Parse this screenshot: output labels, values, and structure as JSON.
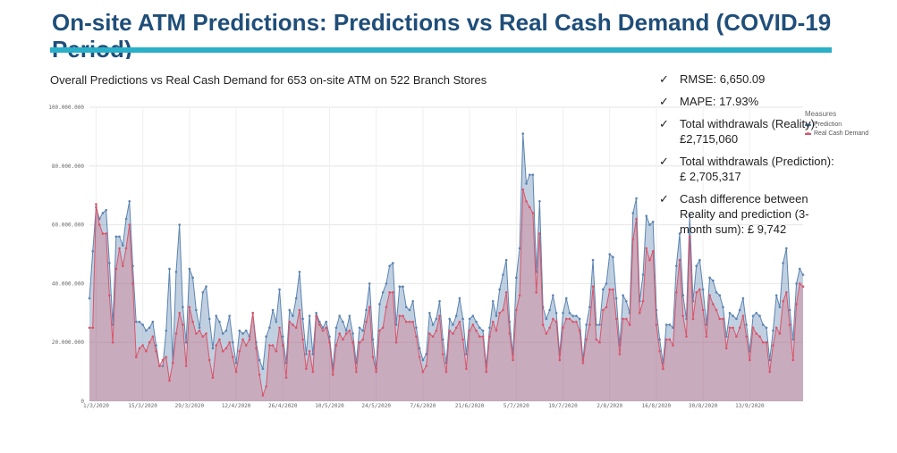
{
  "slide": {
    "title": "On-site ATM Predictions: Predictions vs Real Cash Demand (COVID-19 Period)",
    "subtitle": "Overall Predictions vs Real Cash Demand for 653 on-site ATM on 522 Branch Stores"
  },
  "stats": [
    {
      "check": "✓",
      "text": "RMSE: 6,650.09"
    },
    {
      "check": "✓",
      "text": "MAPE: 17.93%"
    },
    {
      "check": "✓",
      "text": "Total withdrawals (Reality): £2,715,060"
    },
    {
      "check": "✓",
      "text": "Total withdrawals (Prediction): £ 2,705,317"
    },
    {
      "check": "✓",
      "text": "Cash difference between Reality and prediction (3-month sum): £ 9,742"
    }
  ],
  "legend": {
    "title": "Measures",
    "items": [
      {
        "label": "Prediction",
        "color": "#5b84b1"
      },
      {
        "label": "Real Cash Demand",
        "color": "#d9556a"
      }
    ]
  },
  "chart_data": {
    "type": "area",
    "title": "",
    "xlabel": "",
    "ylabel": "",
    "ylim": [
      0,
      100000000
    ],
    "y_ticks": [
      {
        "value": 0,
        "label": "0"
      },
      {
        "value": 20000000,
        "label": "20.000.000"
      },
      {
        "value": 40000000,
        "label": "40.000.000"
      },
      {
        "value": 60000000,
        "label": "60.000.000"
      },
      {
        "value": 80000000,
        "label": "80.000.000"
      },
      {
        "value": 100000000,
        "label": "100.000.000"
      }
    ],
    "x_ticks": [
      {
        "index": 2,
        "label": "1/3/2020"
      },
      {
        "index": 16,
        "label": "15/3/2020"
      },
      {
        "index": 30,
        "label": "29/3/2020"
      },
      {
        "index": 44,
        "label": "12/4/2020"
      },
      {
        "index": 58,
        "label": "26/4/2020"
      },
      {
        "index": 72,
        "label": "10/5/2020"
      },
      {
        "index": 86,
        "label": "24/5/2020"
      },
      {
        "index": 100,
        "label": "7/6/2020"
      },
      {
        "index": 114,
        "label": "21/6/2020"
      },
      {
        "index": 128,
        "label": "5/7/2020"
      },
      {
        "index": 142,
        "label": "19/7/2020"
      },
      {
        "index": 156,
        "label": "2/8/2020"
      },
      {
        "index": 170,
        "label": "16/8/2020"
      },
      {
        "index": 184,
        "label": "30/8/2020"
      },
      {
        "index": 198,
        "label": "13/9/2020"
      }
    ],
    "grid": true,
    "legend_position": "top-right",
    "series": [
      {
        "name": "Prediction",
        "color": "#5b84b1",
        "values": [
          35000000,
          51000000,
          66000000,
          62000000,
          64000000,
          65000000,
          47000000,
          26000000,
          56000000,
          56000000,
          53000000,
          62000000,
          68000000,
          46000000,
          27000000,
          27000000,
          26000000,
          24000000,
          25000000,
          27000000,
          19000000,
          12000000,
          12000000,
          24000000,
          45000000,
          13000000,
          44000000,
          60000000,
          32000000,
          20000000,
          45000000,
          42000000,
          31000000,
          25000000,
          37000000,
          39000000,
          28000000,
          18000000,
          29000000,
          27000000,
          23000000,
          24000000,
          29000000,
          20000000,
          13000000,
          24000000,
          23000000,
          24000000,
          22000000,
          30000000,
          20000000,
          14000000,
          11000000,
          22000000,
          25000000,
          31000000,
          27000000,
          38000000,
          22000000,
          13000000,
          31000000,
          29000000,
          35000000,
          44000000,
          28000000,
          16000000,
          29000000,
          16000000,
          30000000,
          27000000,
          25000000,
          27000000,
          22000000,
          11000000,
          25000000,
          29000000,
          27000000,
          24000000,
          29000000,
          23000000,
          13000000,
          25000000,
          24000000,
          31000000,
          40000000,
          21000000,
          11000000,
          33000000,
          37000000,
          40000000,
          46000000,
          47000000,
          26000000,
          39000000,
          39000000,
          32000000,
          31000000,
          34000000,
          25000000,
          18000000,
          14000000,
          16000000,
          30000000,
          26000000,
          28000000,
          34000000,
          21000000,
          13000000,
          28000000,
          26000000,
          29000000,
          35000000,
          28000000,
          16000000,
          28000000,
          29000000,
          27000000,
          25000000,
          24000000,
          12000000,
          25000000,
          34000000,
          29000000,
          38000000,
          43000000,
          48000000,
          27000000,
          16000000,
          42000000,
          52000000,
          91000000,
          74000000,
          77000000,
          77000000,
          44000000,
          68000000,
          32000000,
          28000000,
          31000000,
          36000000,
          30000000,
          16000000,
          30000000,
          35000000,
          30000000,
          29000000,
          29000000,
          28000000,
          14000000,
          26000000,
          32000000,
          48000000,
          26000000,
          26000000,
          38000000,
          40000000,
          50000000,
          49000000,
          35000000,
          19000000,
          36000000,
          34000000,
          30000000,
          64000000,
          69000000,
          34000000,
          43000000,
          63000000,
          60000000,
          61000000,
          31000000,
          21000000,
          13000000,
          26000000,
          26000000,
          25000000,
          46000000,
          57000000,
          36000000,
          28000000,
          63000000,
          34000000,
          46000000,
          48000000,
          38000000,
          26000000,
          42000000,
          41000000,
          37000000,
          36000000,
          32000000,
          22000000,
          30000000,
          29000000,
          28000000,
          31000000,
          35000000,
          26000000,
          17000000,
          29000000,
          30000000,
          29000000,
          26000000,
          25000000,
          14000000,
          24000000,
          36000000,
          32000000,
          47000000,
          52000000,
          31000000,
          21000000,
          40000000,
          45000000,
          43000000
        ]
      },
      {
        "name": "Real Cash Demand",
        "color": "#d9556a",
        "values": [
          25000000,
          25000000,
          67000000,
          60000000,
          57000000,
          57000000,
          36000000,
          20000000,
          45000000,
          52000000,
          46000000,
          52000000,
          60000000,
          40000000,
          15000000,
          18000000,
          19000000,
          17000000,
          20000000,
          22000000,
          17000000,
          12000000,
          14000000,
          15000000,
          7000000,
          13000000,
          23000000,
          30000000,
          26000000,
          12000000,
          32000000,
          27000000,
          23000000,
          24000000,
          22000000,
          23000000,
          14000000,
          8000000,
          19000000,
          21000000,
          17000000,
          18000000,
          20000000,
          15000000,
          10000000,
          17000000,
          21000000,
          19000000,
          21000000,
          30000000,
          18000000,
          9000000,
          2000000,
          5000000,
          19000000,
          19000000,
          17000000,
          25000000,
          19000000,
          8000000,
          27000000,
          26000000,
          25000000,
          31000000,
          21000000,
          11000000,
          17000000,
          10000000,
          29000000,
          26000000,
          24000000,
          25000000,
          20000000,
          9000000,
          19000000,
          23000000,
          21000000,
          23000000,
          24000000,
          20000000,
          10000000,
          20000000,
          21000000,
          27000000,
          32000000,
          15000000,
          10000000,
          24000000,
          25000000,
          32000000,
          37000000,
          37000000,
          20000000,
          29000000,
          29000000,
          27000000,
          27000000,
          27000000,
          22000000,
          15000000,
          10000000,
          12000000,
          23000000,
          22000000,
          24000000,
          29000000,
          16000000,
          10000000,
          24000000,
          23000000,
          25000000,
          27000000,
          21000000,
          11000000,
          24000000,
          26000000,
          24000000,
          22000000,
          22000000,
          10000000,
          22000000,
          27000000,
          24000000,
          30000000,
          31000000,
          37000000,
          23000000,
          14000000,
          31000000,
          36000000,
          72000000,
          68000000,
          66000000,
          64000000,
          37000000,
          57000000,
          26000000,
          23000000,
          25000000,
          28000000,
          27000000,
          14000000,
          25000000,
          28000000,
          28000000,
          27000000,
          27000000,
          24000000,
          13000000,
          21000000,
          26000000,
          39000000,
          21000000,
          20000000,
          31000000,
          32000000,
          38000000,
          38000000,
          28000000,
          16000000,
          28000000,
          28000000,
          26000000,
          55000000,
          62000000,
          30000000,
          34000000,
          52000000,
          48000000,
          51000000,
          26000000,
          17000000,
          11000000,
          21000000,
          21000000,
          19000000,
          37000000,
          48000000,
          29000000,
          22000000,
          56000000,
          28000000,
          37000000,
          38000000,
          31000000,
          22000000,
          36000000,
          33000000,
          31000000,
          28000000,
          28000000,
          18000000,
          25000000,
          25000000,
          22000000,
          25000000,
          29000000,
          22000000,
          14000000,
          25000000,
          23000000,
          22000000,
          20000000,
          20000000,
          10000000,
          19000000,
          25000000,
          23000000,
          34000000,
          37000000,
          26000000,
          14000000,
          33000000,
          40000000,
          39000000
        ]
      }
    ]
  }
}
